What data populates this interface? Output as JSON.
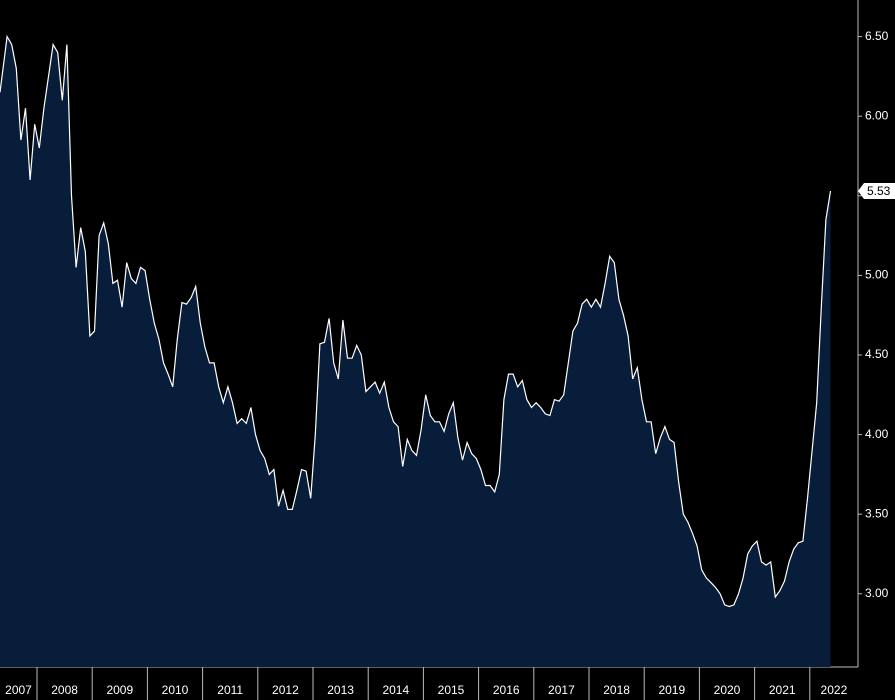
{
  "chart_data": {
    "type": "area",
    "categories": [
      "2007",
      "2008",
      "2009",
      "2010",
      "2011",
      "2012",
      "2013",
      "2014",
      "2015",
      "2016",
      "2017",
      "2018",
      "2019",
      "2020",
      "2021",
      "2022"
    ],
    "values": [
      [
        6.15,
        6.5,
        6.45,
        6.3,
        5.85,
        6.05,
        5.6,
        5.95
      ],
      [
        5.8,
        6.05,
        6.25,
        6.45,
        6.4,
        6.1,
        6.45,
        5.5,
        5.05,
        5.3,
        5.15,
        4.62
      ],
      [
        4.65,
        5.25,
        5.33,
        5.2,
        4.95,
        4.97,
        4.8,
        5.08,
        4.98,
        4.95,
        5.05,
        5.03
      ],
      [
        4.85,
        4.7,
        4.6,
        4.45,
        4.38,
        4.3,
        4.6,
        4.83,
        4.82,
        4.86,
        4.93,
        4.7
      ],
      [
        4.55,
        4.45,
        4.45,
        4.3,
        4.2,
        4.3,
        4.2,
        4.07,
        4.1,
        4.07,
        4.17,
        4.0
      ],
      [
        3.9,
        3.85,
        3.75,
        3.78,
        3.55,
        3.65,
        3.53,
        3.53,
        3.65,
        3.78,
        3.77,
        3.6
      ],
      [
        4.0,
        4.57,
        4.58,
        4.73,
        4.45,
        4.35,
        4.72,
        4.48,
        4.48,
        4.56,
        4.5,
        4.27
      ],
      [
        4.3,
        4.33,
        4.26,
        4.33,
        4.17,
        4.08,
        4.05,
        3.8,
        3.97,
        3.9,
        3.87,
        4.03
      ],
      [
        4.25,
        4.12,
        4.08,
        4.08,
        4.02,
        4.13,
        4.2,
        3.98,
        3.84,
        3.95,
        3.88,
        3.85
      ],
      [
        3.78,
        3.68,
        3.68,
        3.64,
        3.75,
        4.22,
        4.38,
        4.38,
        4.3,
        4.34,
        4.22,
        4.17
      ],
      [
        4.2,
        4.17,
        4.13,
        4.12,
        4.22,
        4.21,
        4.25,
        4.45,
        4.65,
        4.7,
        4.82,
        4.85
      ],
      [
        4.8,
        4.85,
        4.8,
        4.95,
        5.12,
        5.08,
        4.85,
        4.75,
        4.62,
        4.35,
        4.42,
        4.22
      ],
      [
        4.08,
        4.08,
        3.88,
        3.98,
        4.05,
        3.97,
        3.95,
        3.7,
        3.5,
        3.45,
        3.38,
        3.3
      ],
      [
        3.15,
        3.1,
        3.07,
        3.04,
        3.0,
        2.93,
        2.92,
        2.93,
        3.0,
        3.1,
        3.25,
        3.3
      ],
      [
        3.33,
        3.2,
        3.18,
        3.2,
        2.98,
        3.02,
        3.08,
        3.2,
        3.28,
        3.32,
        3.33,
        3.6
      ],
      [
        3.9,
        4.2,
        4.8,
        5.35,
        5.53
      ]
    ],
    "color": "#081d3a",
    "line_color": "#ffffff",
    "ylim": [
      2.54,
      6.73
    ],
    "yticks": [
      {
        "value": 3,
        "label": "3.00"
      },
      {
        "value": 3.5,
        "label": "3.50"
      },
      {
        "value": 4,
        "label": "4.00"
      },
      {
        "value": 4.5,
        "label": "4.50"
      },
      {
        "value": 5,
        "label": "5.00"
      },
      {
        "value": 5.5,
        "label": "5.50"
      },
      {
        "value": 6,
        "label": "6.00"
      },
      {
        "value": 6.5,
        "label": "6.50"
      }
    ]
  }
}
